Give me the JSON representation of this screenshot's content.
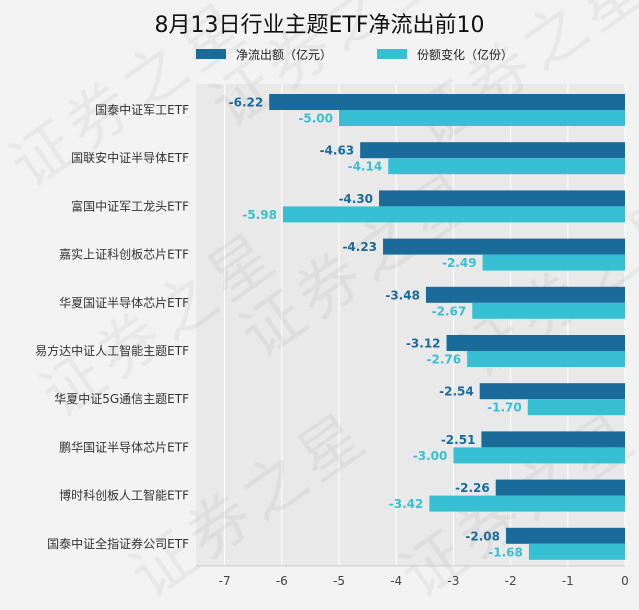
{
  "chart_data": {
    "type": "bar",
    "orientation": "horizontal",
    "title": "8月13日行业主题ETF净流出前10",
    "xlim": [
      -7.5,
      0
    ],
    "xticks": [
      -7,
      -6,
      -5,
      -4,
      -3,
      -2,
      -1,
      0
    ],
    "grid": true,
    "legend_position": "top",
    "categories": [
      "国泰中证军工ETF",
      "国联安中证半导体ETF",
      "富国中证军工龙头ETF",
      "嘉实上证科创板芯片ETF",
      "华夏国证半导体芯片ETF",
      "易方达中证人工智能主题ETF",
      "华夏中证5G通信主题ETF",
      "鹏华国证半导体芯片ETF",
      "博时科创板人工智能ETF",
      "国泰中证全指证券公司ETF"
    ],
    "series": [
      {
        "name": "净流出额（亿元）",
        "color": "#1a6a9a",
        "values": [
          -6.22,
          -4.63,
          -4.3,
          -4.23,
          -3.48,
          -3.12,
          -2.54,
          -2.51,
          -2.26,
          -2.08
        ],
        "labels": [
          "-6.22",
          "-4.63",
          "-4.30",
          "-4.23",
          "-3.48",
          "-3.12",
          "-2.54",
          "-2.51",
          "-2.26",
          "-2.08"
        ]
      },
      {
        "name": "份额变化（亿份）",
        "color": "#37c0d3",
        "values": [
          -5.0,
          -4.14,
          -5.98,
          -2.49,
          -2.67,
          -2.76,
          -1.7,
          -3.0,
          -3.42,
          -1.68
        ],
        "labels": [
          "-5.00",
          "-4.14",
          "-5.98",
          "-2.49",
          "-2.67",
          "-2.76",
          "-1.70",
          "-3.00",
          "-3.42",
          "-1.68"
        ]
      }
    ]
  },
  "watermark_text": "证券之星"
}
